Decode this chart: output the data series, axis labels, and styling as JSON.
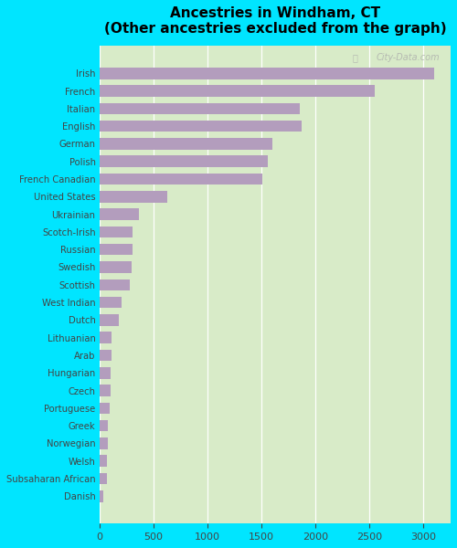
{
  "title": "Ancestries in Windham, CT\n(Other ancestries excluded from the graph)",
  "categories": [
    "Irish",
    "French",
    "Italian",
    "English",
    "German",
    "Polish",
    "French Canadian",
    "United States",
    "Ukrainian",
    "Scotch-Irish",
    "Russian",
    "Swedish",
    "Scottish",
    "West Indian",
    "Dutch",
    "Lithuanian",
    "Arab",
    "Hungarian",
    "Czech",
    "Portuguese",
    "Greek",
    "Norwegian",
    "Welsh",
    "Subsaharan African",
    "Danish"
  ],
  "values": [
    3100,
    2550,
    1850,
    1870,
    1600,
    1560,
    1510,
    630,
    370,
    310,
    305,
    300,
    280,
    205,
    180,
    115,
    110,
    105,
    100,
    95,
    80,
    75,
    72,
    70,
    38
  ],
  "bar_color": "#b39dbd",
  "background_color": "#d8ebc8",
  "outer_background": "#00e5ff",
  "xlim": [
    0,
    3250
  ],
  "xticks": [
    0,
    500,
    1000,
    1500,
    2000,
    2500,
    3000
  ],
  "watermark": "City-Data.com"
}
